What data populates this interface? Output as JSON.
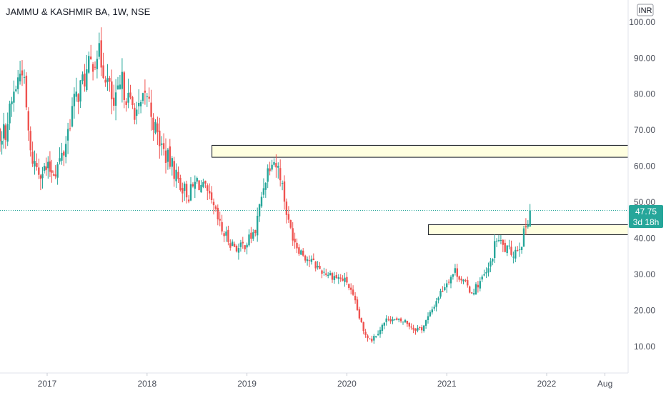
{
  "chart_data": {
    "type": "candlestick",
    "title": "JAMMU & KASHMIR BA, 1W, NSE",
    "currency": "INR",
    "xlabel": "",
    "ylabel": "",
    "ylim": [
      3,
      103
    ],
    "y_ticks": [
      "100.00",
      "90.00",
      "80.00",
      "70.00",
      "60.00",
      "50.00",
      "40.00",
      "30.00",
      "20.00",
      "10.00"
    ],
    "x_ticks": [
      "2017",
      "2018",
      "2019",
      "2020",
      "2021",
      "2022",
      "Aug"
    ],
    "grid": false,
    "last_price": "47.75",
    "countdown": "3d 18h",
    "zones": [
      {
        "start": "2018-10",
        "y_low": 62.5,
        "y_high": 65.8
      },
      {
        "start": "2020-12",
        "y_low": 41.0,
        "y_high": 43.8
      }
    ],
    "price_path": [
      [
        "2016-06",
        66
      ],
      [
        "2016-08",
        70
      ],
      [
        "2016-09",
        80
      ],
      [
        "2016-10",
        88
      ],
      [
        "2016-11",
        63
      ],
      [
        "2016-12",
        59
      ],
      [
        "2017-02",
        59
      ],
      [
        "2017-03",
        64
      ],
      [
        "2017-04",
        76
      ],
      [
        "2017-05",
        82
      ],
      [
        "2017-06",
        87
      ],
      [
        "2017-07",
        92
      ],
      [
        "2017-08",
        86
      ],
      [
        "2017-09",
        76
      ],
      [
        "2017-10",
        83
      ],
      [
        "2017-11",
        77
      ],
      [
        "2017-12",
        75
      ],
      [
        "2018-01",
        80
      ],
      [
        "2018-02",
        70
      ],
      [
        "2018-03",
        64
      ],
      [
        "2018-04",
        60
      ],
      [
        "2018-05",
        55
      ],
      [
        "2018-06",
        52
      ],
      [
        "2018-07",
        56
      ],
      [
        "2018-08",
        53
      ],
      [
        "2018-09",
        48
      ],
      [
        "2018-10",
        42
      ],
      [
        "2018-11",
        39
      ],
      [
        "2018-12",
        37
      ],
      [
        "2019-01",
        39
      ],
      [
        "2019-02",
        42
      ],
      [
        "2019-03",
        55
      ],
      [
        "2019-04",
        63
      ],
      [
        "2019-05",
        58
      ],
      [
        "2019-06",
        44
      ],
      [
        "2019-07",
        38
      ],
      [
        "2019-08",
        35
      ],
      [
        "2019-09",
        33
      ],
      [
        "2019-10",
        31
      ],
      [
        "2019-11",
        30
      ],
      [
        "2019-12",
        29
      ],
      [
        "2020-01",
        28
      ],
      [
        "2020-02",
        22
      ],
      [
        "2020-03",
        14
      ],
      [
        "2020-04",
        12
      ],
      [
        "2020-05",
        15
      ],
      [
        "2020-06",
        18
      ],
      [
        "2020-07",
        17
      ],
      [
        "2020-08",
        17
      ],
      [
        "2020-09",
        15
      ],
      [
        "2020-10",
        15
      ],
      [
        "2020-11",
        19
      ],
      [
        "2020-12",
        24
      ],
      [
        "2021-01",
        28
      ],
      [
        "2021-02",
        31
      ],
      [
        "2021-03",
        28
      ],
      [
        "2021-04",
        25
      ],
      [
        "2021-05",
        28
      ],
      [
        "2021-06",
        31
      ],
      [
        "2021-07",
        40
      ],
      [
        "2021-08",
        37
      ],
      [
        "2021-09",
        36
      ],
      [
        "2021-10",
        39
      ],
      [
        "2021-11",
        47.75
      ]
    ]
  },
  "colors": {
    "up": "#26a69a",
    "down": "#ef5350",
    "zone_fill": "#ffffe0",
    "zone_stroke": "#131722",
    "price_line": "#26a69a",
    "axis_text": "#4a4e59"
  }
}
